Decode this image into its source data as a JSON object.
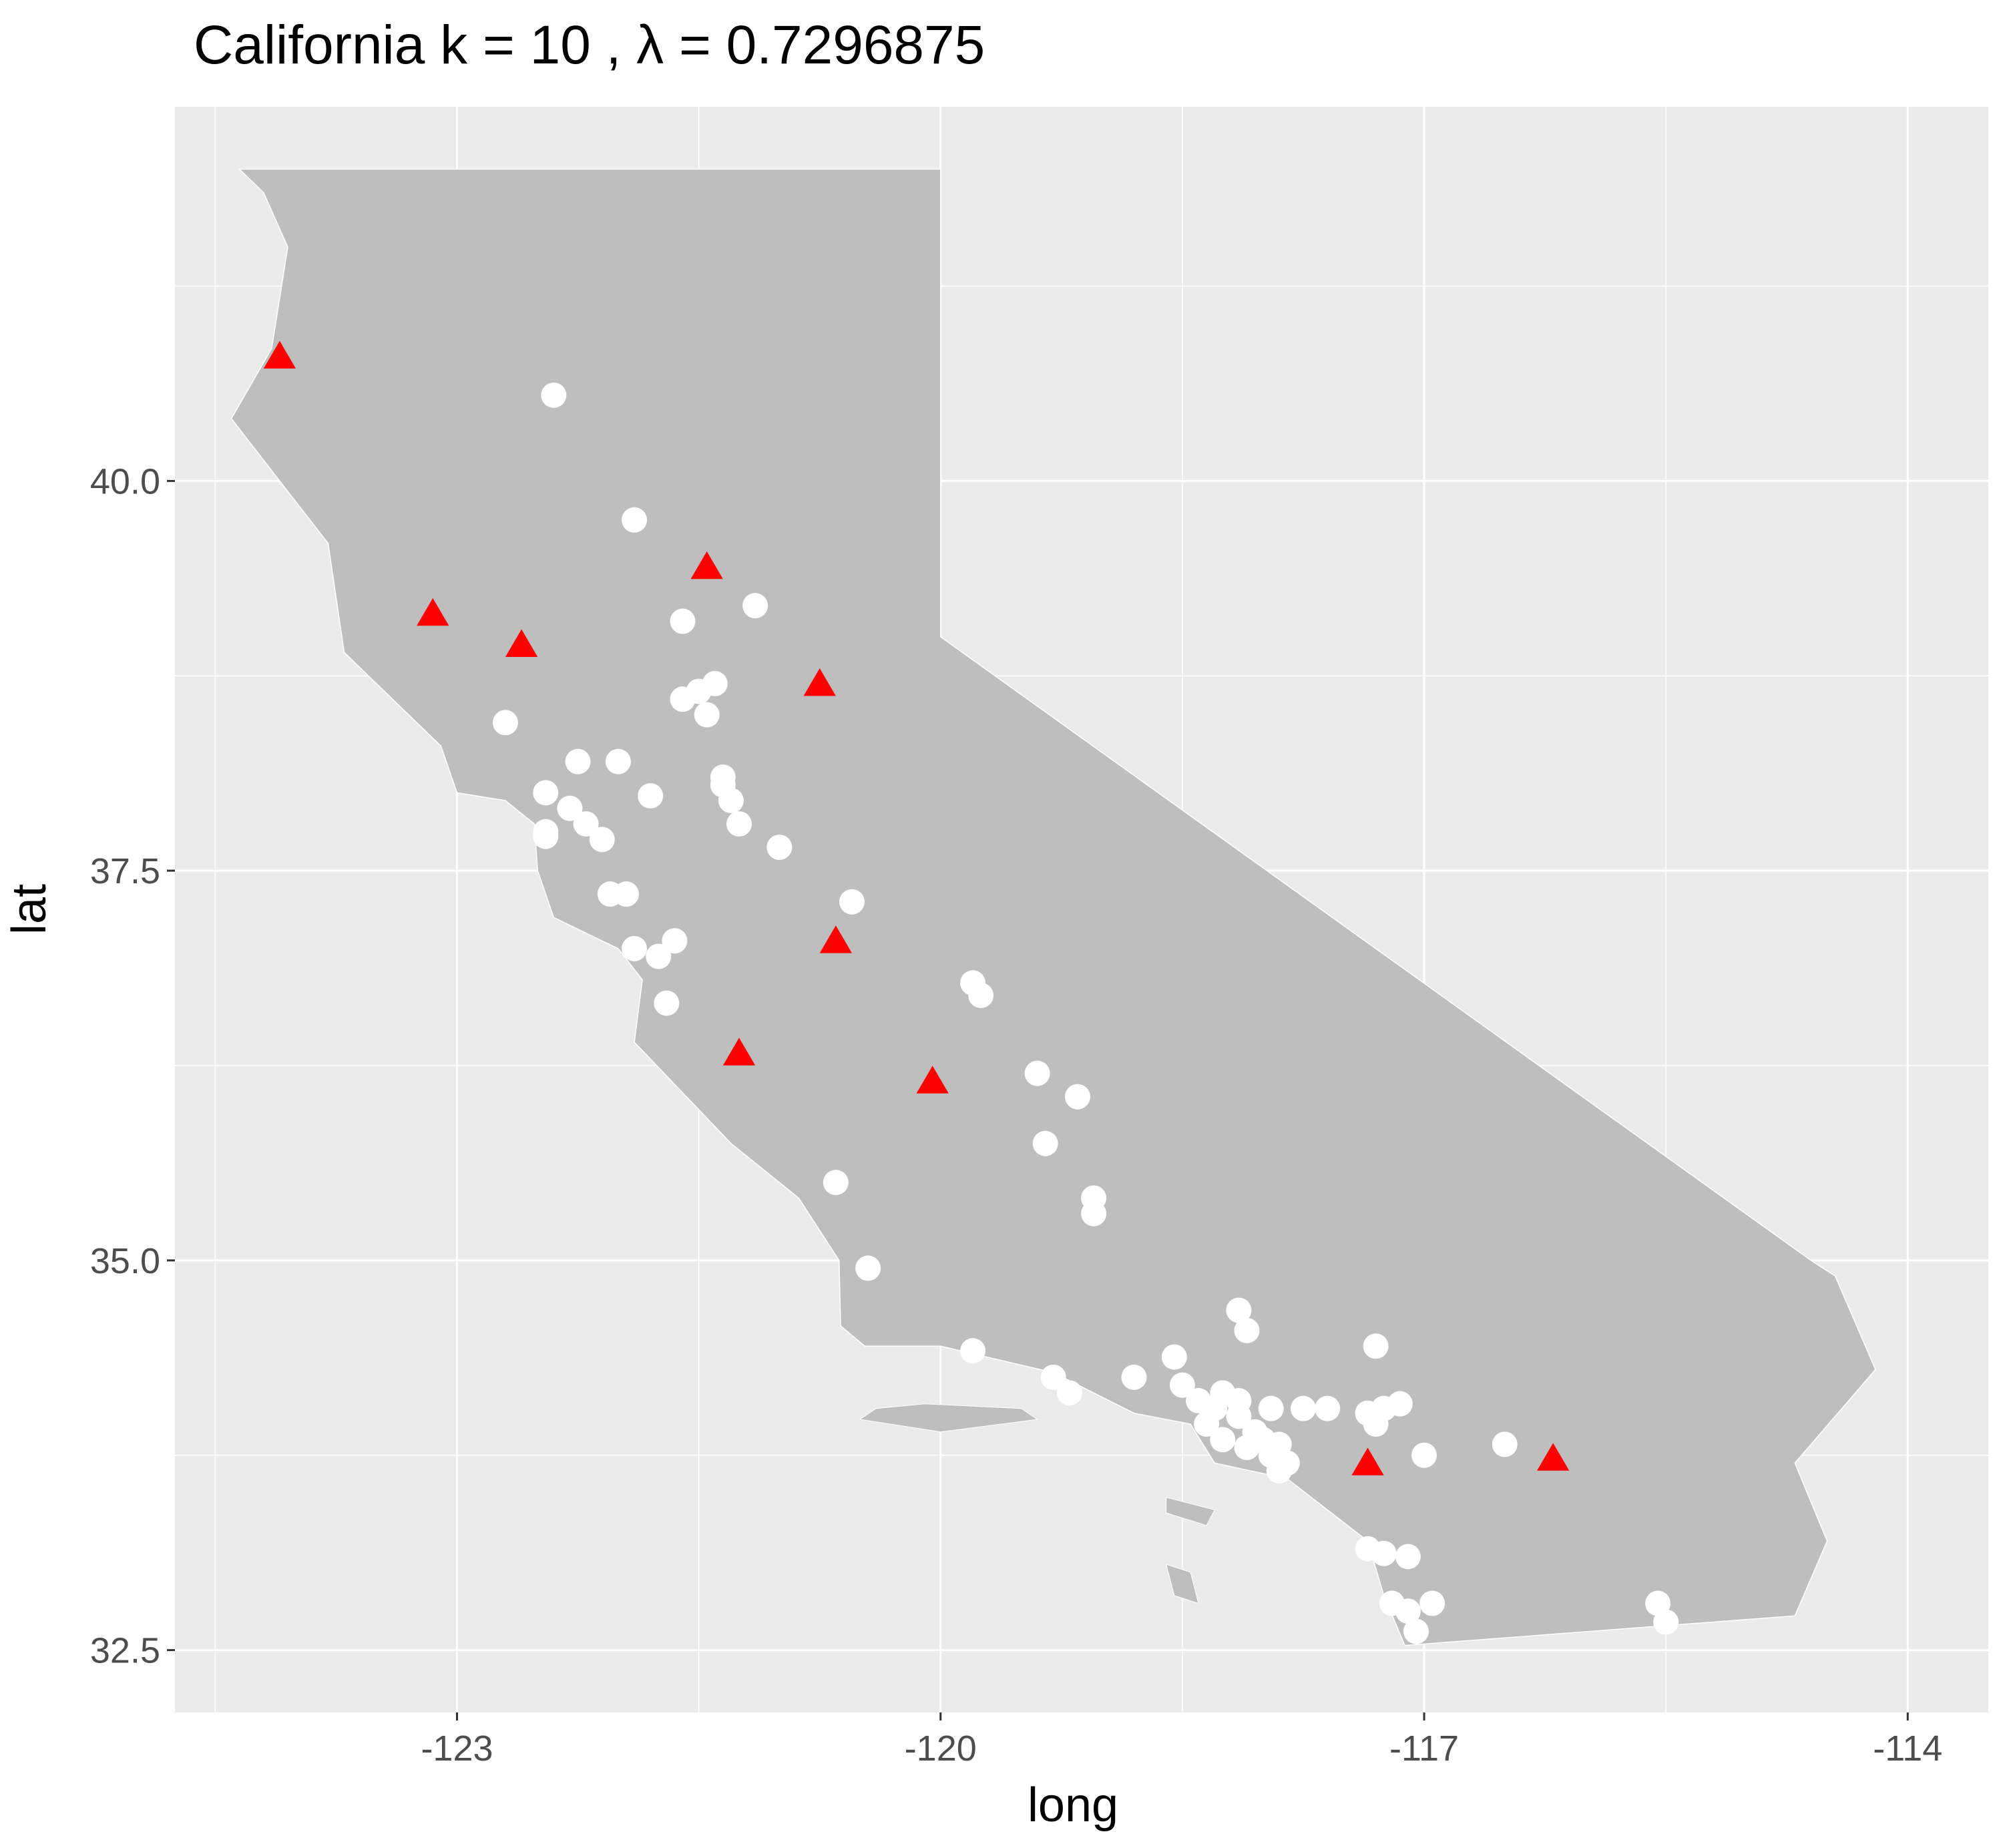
{
  "chart_data": {
    "type": "scatter",
    "title": "California  k =  10 ,  λ  =  0.7296875",
    "xlabel": "long",
    "ylabel": "lat",
    "xlim": [
      -124.75,
      -113.5
    ],
    "ylim": [
      32.1,
      42.4
    ],
    "x_ticks": [
      -123,
      -120,
      -117,
      -114
    ],
    "x_tick_labels": [
      "-123",
      "-120",
      "-117",
      "-114"
    ],
    "y_ticks": [
      32.5,
      35.0,
      37.5,
      40.0
    ],
    "y_tick_labels": [
      "32.5",
      "35.0",
      "37.5",
      "40.0"
    ],
    "x_minor_ticks": [
      -124.5,
      -121.5,
      -118.5,
      -115.5
    ],
    "y_minor_ticks": [
      33.75,
      36.25,
      38.75,
      41.25
    ],
    "grid": true,
    "panel_background": "#ebebeb",
    "map_fill": "#bebebe",
    "map_border": "#ffffff",
    "map_outline": [
      [
        -124.2,
        42.0
      ],
      [
        -120.0,
        42.0
      ],
      [
        -120.0,
        39.0
      ],
      [
        -114.6,
        35.0
      ],
      [
        -114.45,
        34.9
      ],
      [
        -114.2,
        34.3
      ],
      [
        -114.7,
        33.7
      ],
      [
        -114.5,
        33.2
      ],
      [
        -114.7,
        32.72
      ],
      [
        -117.12,
        32.53
      ],
      [
        -117.25,
        32.85
      ],
      [
        -117.35,
        33.2
      ],
      [
        -117.85,
        33.6
      ],
      [
        -118.3,
        33.7
      ],
      [
        -118.45,
        33.95
      ],
      [
        -118.8,
        34.02
      ],
      [
        -119.3,
        34.28
      ],
      [
        -120.0,
        34.45
      ],
      [
        -120.47,
        34.45
      ],
      [
        -120.62,
        34.58
      ],
      [
        -120.63,
        35.0
      ],
      [
        -120.88,
        35.4
      ],
      [
        -121.3,
        35.75
      ],
      [
        -121.9,
        36.4
      ],
      [
        -121.85,
        36.8
      ],
      [
        -122.0,
        37.0
      ],
      [
        -122.4,
        37.2
      ],
      [
        -122.5,
        37.5
      ],
      [
        -122.52,
        37.8
      ],
      [
        -122.7,
        37.95
      ],
      [
        -123.0,
        38.0
      ],
      [
        -123.1,
        38.3
      ],
      [
        -123.7,
        38.9
      ],
      [
        -123.8,
        39.6
      ],
      [
        -124.1,
        40.0
      ],
      [
        -124.4,
        40.4
      ],
      [
        -124.15,
        40.85
      ],
      [
        -124.05,
        41.5
      ],
      [
        -124.2,
        41.85
      ],
      [
        -124.35,
        42.0
      ]
    ],
    "islands": [
      [
        [
          -120.4,
          34.05
        ],
        [
          -120.1,
          34.08
        ],
        [
          -119.5,
          34.05
        ],
        [
          -119.4,
          33.98
        ],
        [
          -120.0,
          33.9
        ],
        [
          -120.5,
          33.98
        ]
      ],
      [
        [
          -118.6,
          33.48
        ],
        [
          -118.3,
          33.4
        ],
        [
          -118.35,
          33.3
        ],
        [
          -118.6,
          33.38
        ]
      ],
      [
        [
          -118.6,
          33.05
        ],
        [
          -118.45,
          33.0
        ],
        [
          -118.4,
          32.8
        ],
        [
          -118.55,
          32.85
        ]
      ]
    ],
    "series": [
      {
        "marker": "circle",
        "color": "#ffffff",
        "points": [
          [
            -122.4,
            40.55
          ],
          [
            -121.9,
            39.75
          ],
          [
            -121.6,
            39.1
          ],
          [
            -121.15,
            39.2
          ],
          [
            -121.6,
            38.6
          ],
          [
            -121.5,
            38.65
          ],
          [
            -121.4,
            38.7
          ],
          [
            -121.45,
            38.5
          ],
          [
            -122.7,
            38.45
          ],
          [
            -122.25,
            38.2
          ],
          [
            -122.0,
            38.2
          ],
          [
            -122.45,
            38.0
          ],
          [
            -122.3,
            37.9
          ],
          [
            -122.2,
            37.8
          ],
          [
            -122.45,
            37.75
          ],
          [
            -122.1,
            37.7
          ],
          [
            -122.05,
            37.35
          ],
          [
            -121.95,
            37.35
          ],
          [
            -121.8,
            37.98
          ],
          [
            -121.35,
            38.05
          ],
          [
            -121.3,
            37.95
          ],
          [
            -121.25,
            37.8
          ],
          [
            -121.0,
            37.65
          ],
          [
            -120.55,
            37.3
          ],
          [
            -121.9,
            37.0
          ],
          [
            -121.75,
            36.95
          ],
          [
            -121.65,
            37.05
          ],
          [
            -121.7,
            36.65
          ],
          [
            -119.8,
            36.78
          ],
          [
            -119.75,
            36.7
          ],
          [
            -119.4,
            36.2
          ],
          [
            -119.15,
            36.05
          ],
          [
            -119.35,
            35.75
          ],
          [
            -119.05,
            35.4
          ],
          [
            -119.05,
            35.3
          ],
          [
            -120.65,
            35.5
          ],
          [
            -120.45,
            34.95
          ],
          [
            -119.8,
            34.42
          ],
          [
            -119.3,
            34.25
          ],
          [
            -119.2,
            34.15
          ],
          [
            -118.8,
            34.25
          ],
          [
            -118.55,
            34.38
          ],
          [
            -118.5,
            34.2
          ],
          [
            -118.4,
            34.1
          ],
          [
            -118.3,
            34.05
          ],
          [
            -118.15,
            34.0
          ],
          [
            -118.05,
            33.9
          ],
          [
            -118.25,
            33.85
          ],
          [
            -118.1,
            33.8
          ],
          [
            -117.95,
            33.75
          ],
          [
            -117.85,
            33.7
          ],
          [
            -118.15,
            34.1
          ],
          [
            -117.95,
            34.05
          ],
          [
            -118.35,
            33.95
          ],
          [
            -118.0,
            33.85
          ],
          [
            -117.9,
            33.82
          ],
          [
            -118.15,
            34.68
          ],
          [
            -118.1,
            34.55
          ],
          [
            -117.3,
            34.45
          ],
          [
            -117.75,
            34.05
          ],
          [
            -117.6,
            34.05
          ],
          [
            -117.35,
            34.02
          ],
          [
            -117.25,
            34.05
          ],
          [
            -117.15,
            34.08
          ],
          [
            -117.3,
            33.95
          ],
          [
            -117.0,
            33.75
          ],
          [
            -117.9,
            33.65
          ],
          [
            -116.5,
            33.82
          ],
          [
            -117.35,
            33.15
          ],
          [
            -117.25,
            33.12
          ],
          [
            -117.1,
            33.1
          ],
          [
            -117.2,
            32.8
          ],
          [
            -117.1,
            32.75
          ],
          [
            -117.05,
            32.62
          ],
          [
            -116.95,
            32.8
          ],
          [
            -115.55,
            32.8
          ],
          [
            -115.5,
            32.68
          ],
          [
            -122.45,
            37.72
          ],
          [
            -121.35,
            38.1
          ],
          [
            -118.25,
            34.15
          ]
        ]
      },
      {
        "marker": "triangle",
        "color": "#ff0000",
        "points": [
          [
            -124.1,
            40.8
          ],
          [
            -123.15,
            39.15
          ],
          [
            -122.6,
            38.95
          ],
          [
            -121.45,
            39.45
          ],
          [
            -120.75,
            38.7
          ],
          [
            -120.65,
            37.05
          ],
          [
            -121.25,
            36.33
          ],
          [
            -120.05,
            36.15
          ],
          [
            -117.35,
            33.7
          ],
          [
            -116.2,
            33.73
          ]
        ]
      }
    ]
  }
}
